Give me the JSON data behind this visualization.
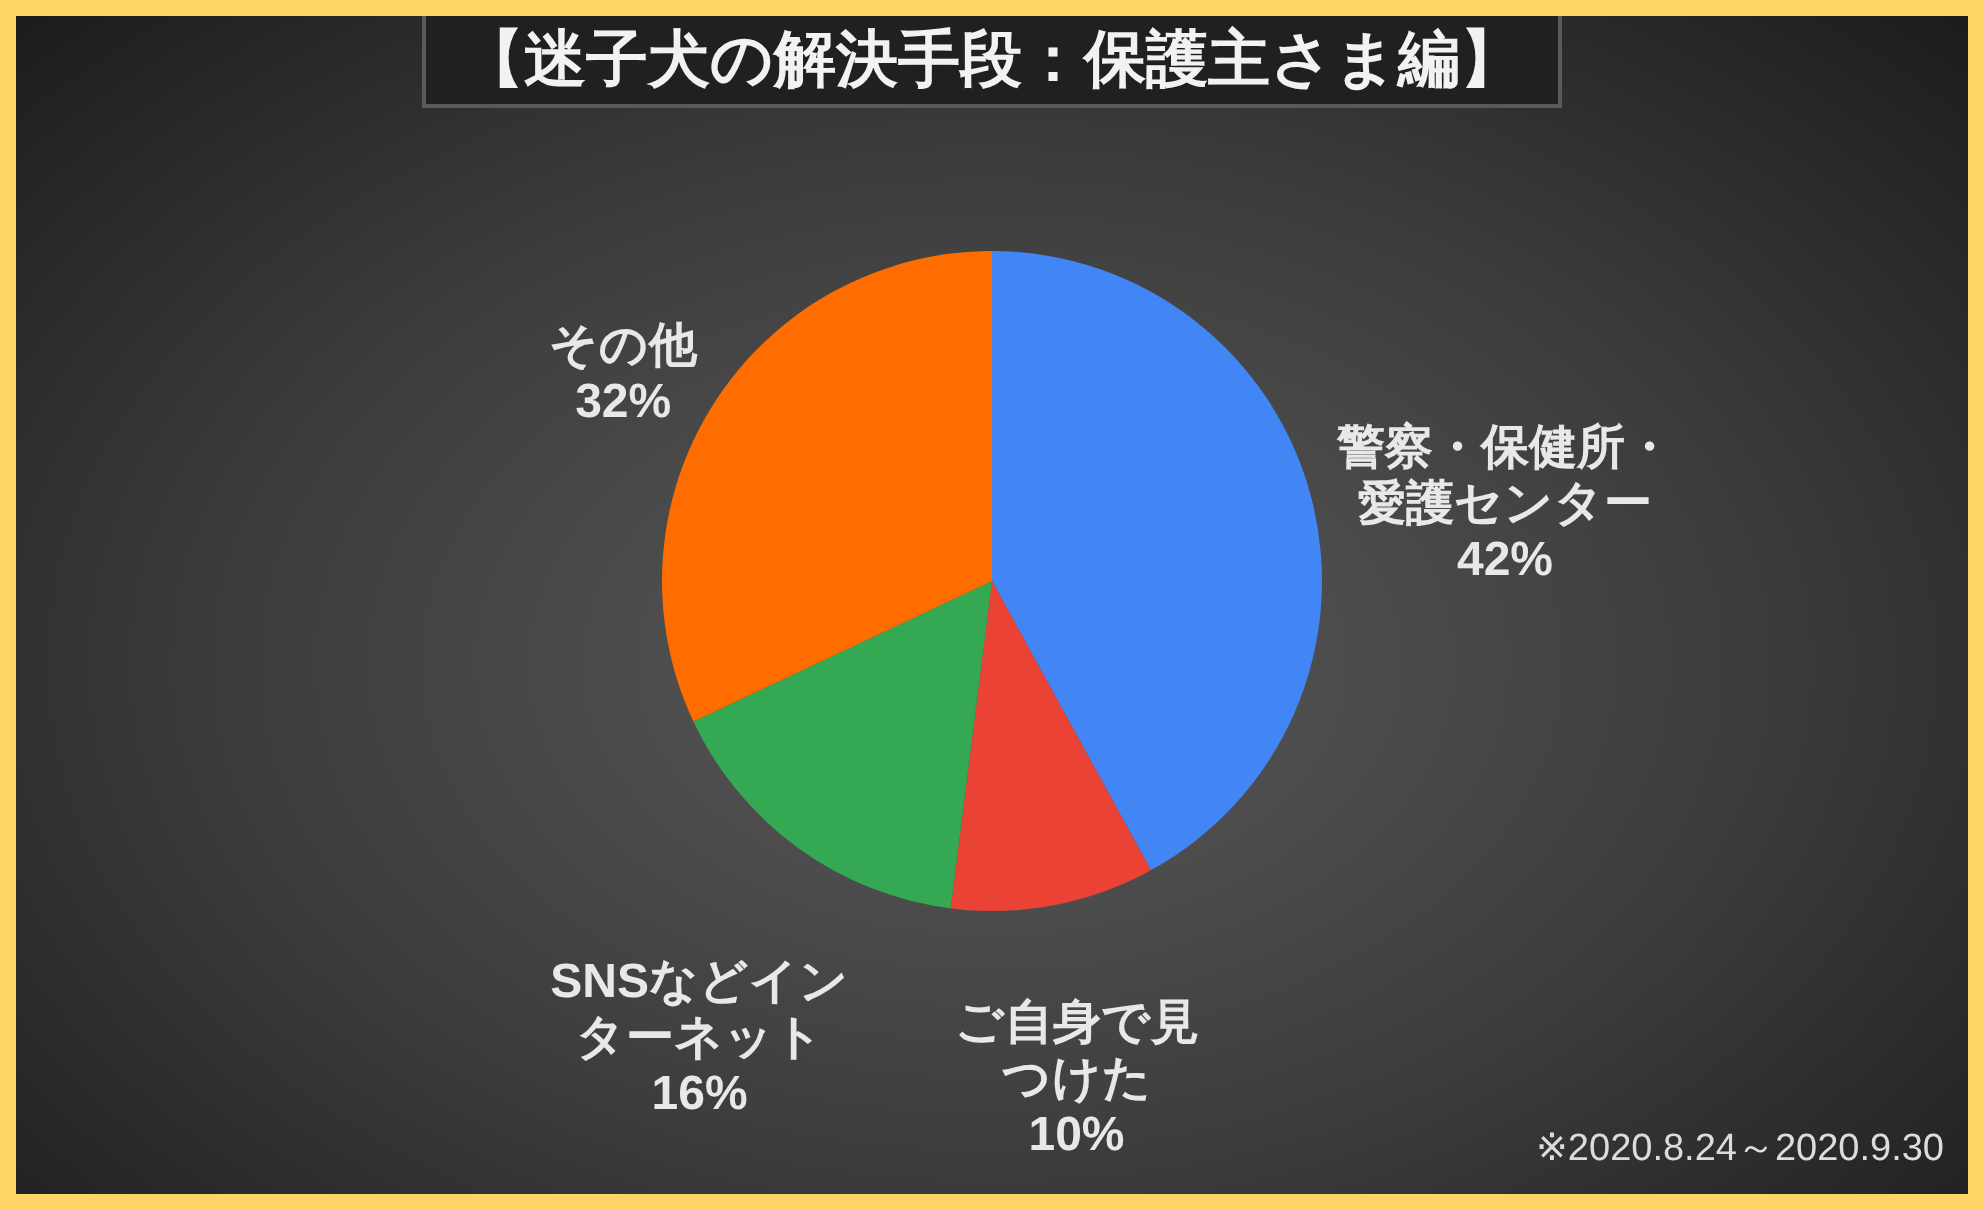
{
  "chart_data": {
    "type": "pie",
    "title": "【迷子犬の解決手段：保護主さま編】",
    "categories": [
      "警察・保健所・愛護センター",
      "ご自身で見つけた",
      "SNSなどインターネット",
      "その他"
    ],
    "values": [
      42,
      10,
      16,
      32
    ],
    "colors": [
      "#4285f4",
      "#ea4335",
      "#34a853",
      "#ff6d01"
    ],
    "value_labels": [
      "42%",
      "10%",
      "16%",
      "32%"
    ],
    "annotations": [
      "※2020.8.24～2020.9.30"
    ]
  }
}
